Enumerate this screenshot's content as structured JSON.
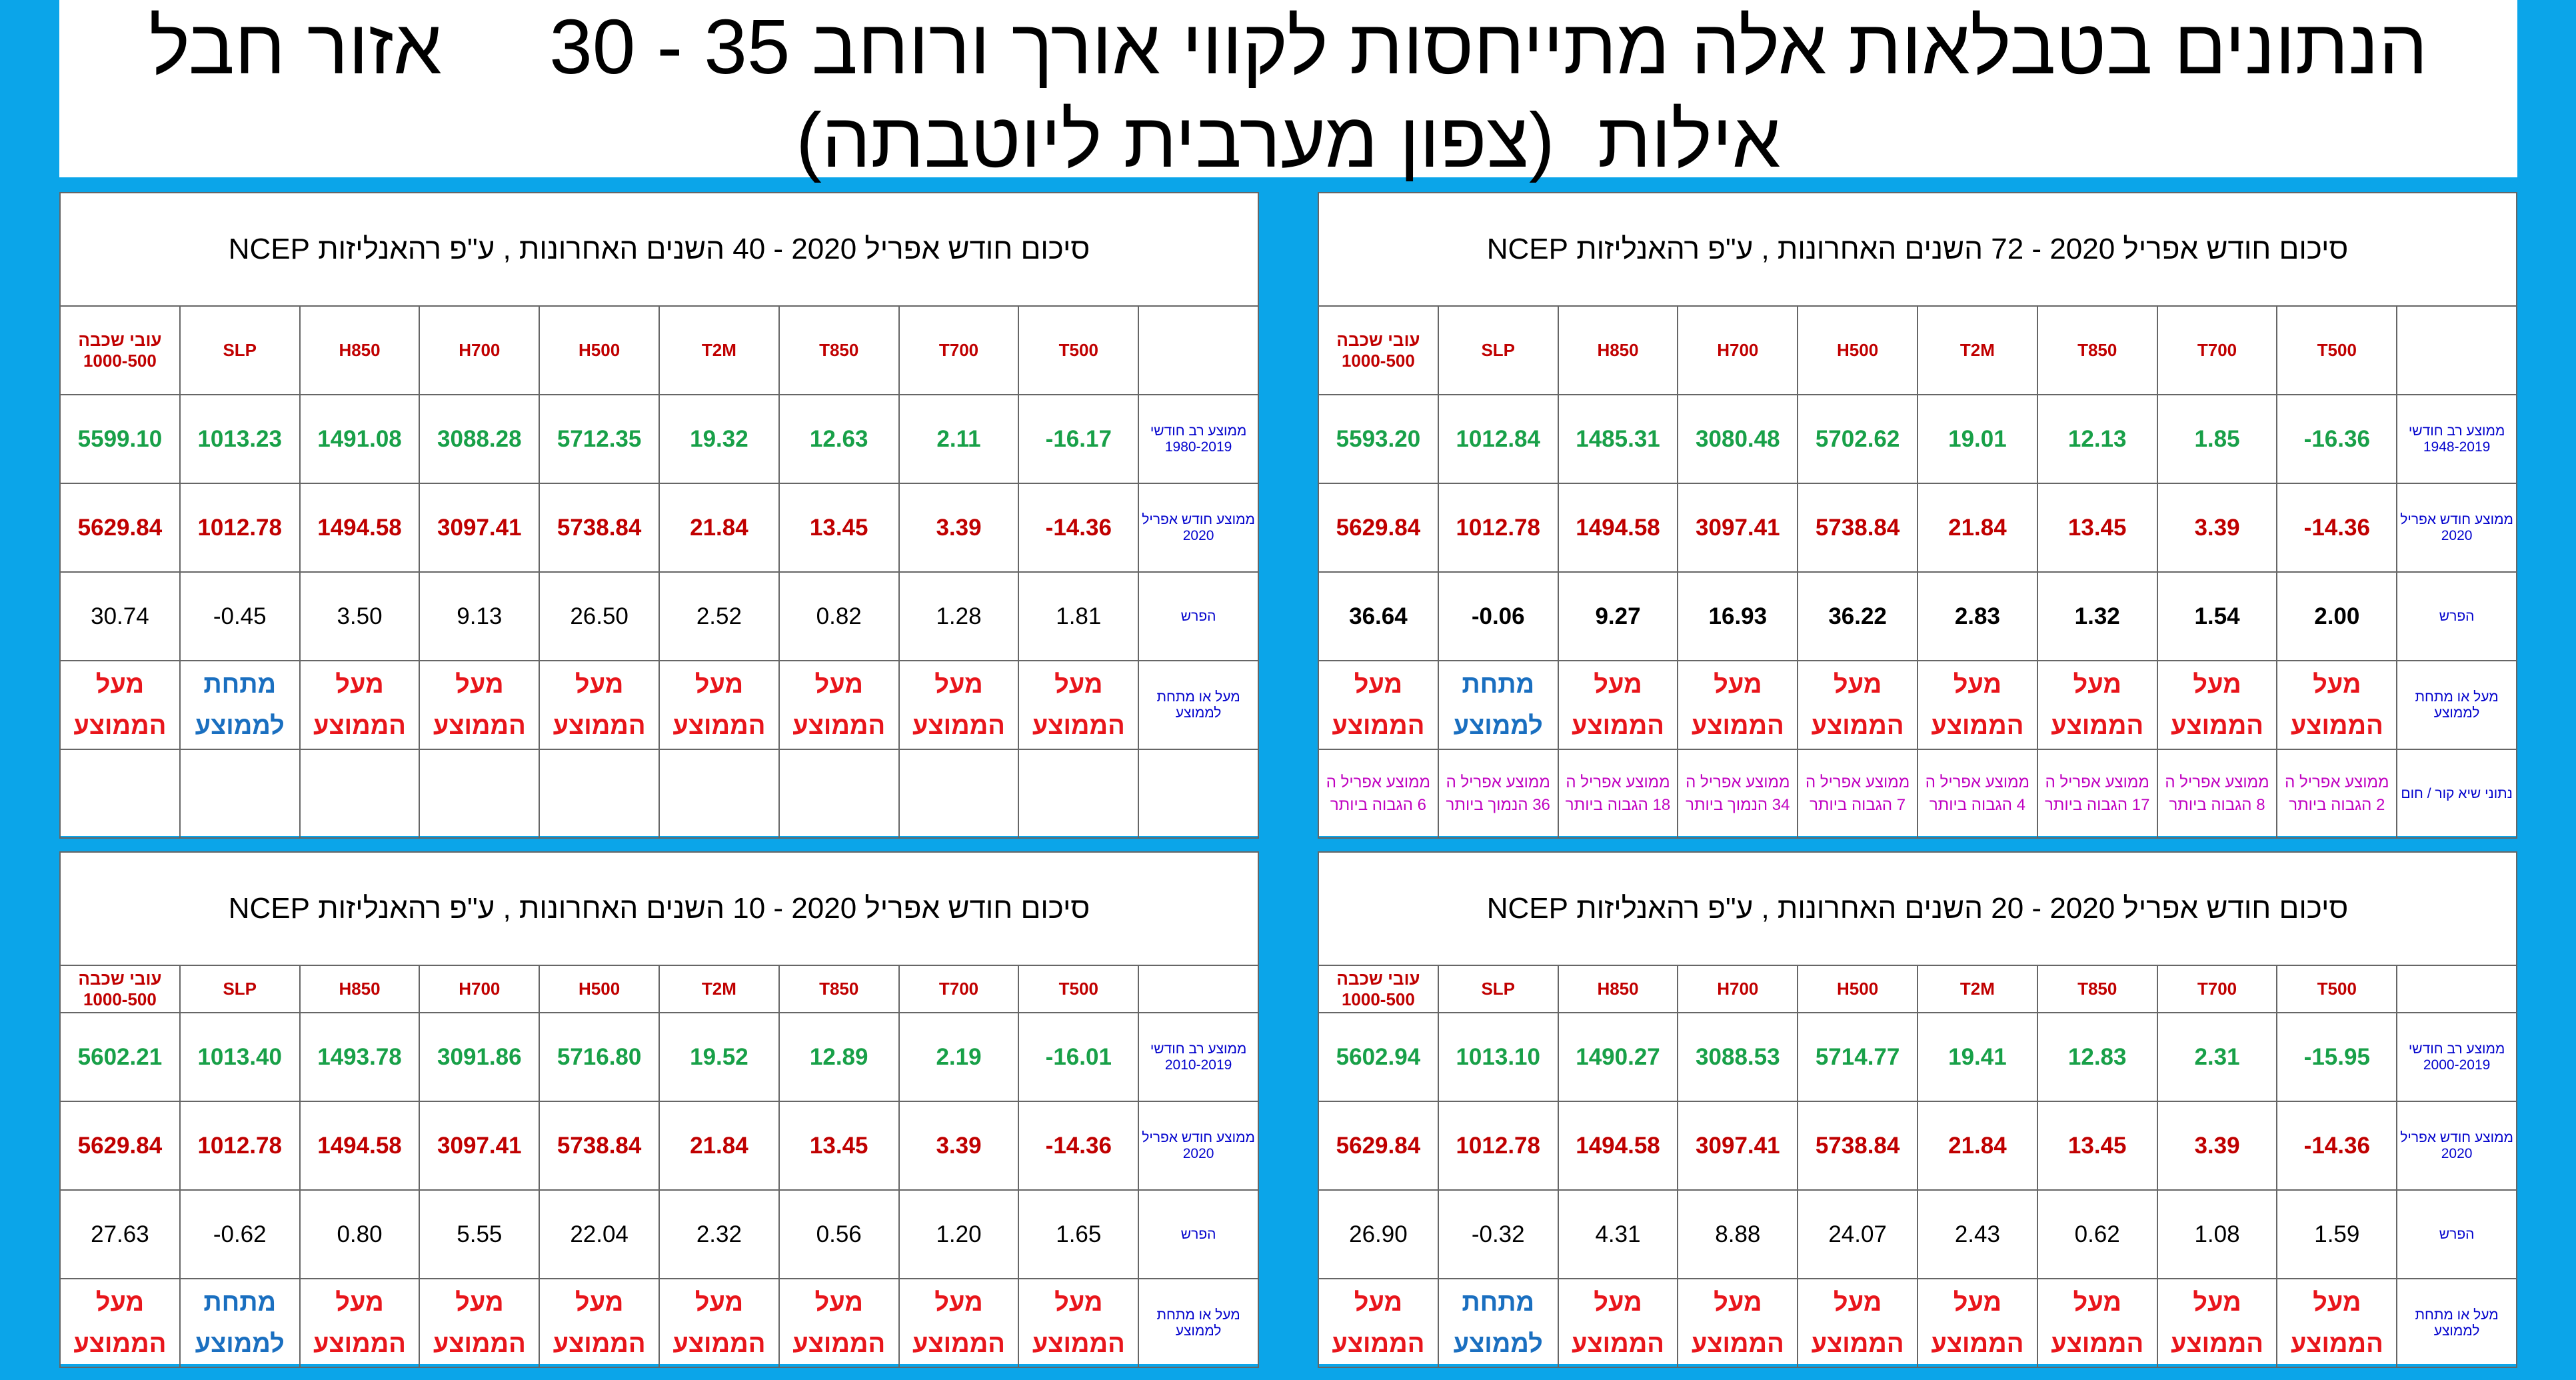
{
  "header": {
    "lines": [
      "הנתונים בטבלאות אלה מתייחסות לקווי אורך ורוחב 35 - 30     אזור חבל",
      "אילות  (צפון מערבית ליוטבתה)"
    ]
  },
  "tables": [
    {
      "title": "סיכום חודש אפריל 2020  -  72 השנים האחרונות  , ע\"פ רהאנליזות NCEP",
      "columns": [
        "T500",
        "T700",
        "T850",
        "T2M",
        "H500",
        "H700",
        "H850",
        "SLP",
        "עובי שכבה 1000-500"
      ],
      "rows": [
        {
          "label": "ממוצע רב חודשי 1948-2019",
          "cells": [
            "-16.36",
            "1.85",
            "12.13",
            "19.01",
            "5702.62",
            "3080.48",
            "1485.31",
            "1012.84",
            "5593.20"
          ]
        },
        {
          "label": "ממוצע חודש אפריל 2020",
          "cells": [
            "-14.36",
            "3.39",
            "13.45",
            "21.84",
            "5738.84",
            "3097.41",
            "1494.58",
            "1012.78",
            "5629.84"
          ]
        },
        {
          "label": "הפרש",
          "cells": [
            "2.00",
            "1.54",
            "1.32",
            "2.83",
            "36.22",
            "16.93",
            "9.27",
            "-0.06",
            "36.64"
          ]
        },
        {
          "label": "מעל או מתחת לממוצע",
          "cells": [
            "מעל הממוצע",
            "מעל הממוצע",
            "מעל הממוצע",
            "מעל הממוצע",
            "מעל הממוצע",
            "מעל הממוצע",
            "מעל הממוצע",
            "מתחת לממוצע",
            "מעל הממוצע"
          ]
        },
        {
          "label": "נתוני שיא  קור / חום",
          "cells": [
            "ממוצע אפריל ה 2 הגבוה ביותר",
            "ממוצע אפריל ה 8 הגבוה ביותר",
            "ממוצע אפריל ה 17 הגבוה ביותר",
            "ממוצע אפריל ה 4 הגבוה ביותר",
            "ממוצע אפריל ה 7 הגבוה ביותר",
            "ממוצע אפריל ה 34 הנמוך ביותר",
            "ממוצע אפריל ה 18 הגבוה ביותר",
            "ממוצע אפריל ה 36 הנמוך ביותר",
            "ממוצע אפריל ה 6 הגבוה ביותר"
          ]
        }
      ]
    },
    {
      "title": "סיכום חודש אפריל 2020  -  40 השנים האחרונות  , ע\"פ רהאנליזות NCEP",
      "columns": [
        "T500",
        "T700",
        "T850",
        "T2M",
        "H500",
        "H700",
        "H850",
        "SLP",
        "עובי שכבה 1000-500"
      ],
      "rows": [
        {
          "label": "ממוצע רב חודשי 1980-2019",
          "cells": [
            "-16.17",
            "2.11",
            "12.63",
            "19.32",
            "5712.35",
            "3088.28",
            "1491.08",
            "1013.23",
            "5599.10"
          ]
        },
        {
          "label": "ממוצע חודש אפריל 2020",
          "cells": [
            "-14.36",
            "3.39",
            "13.45",
            "21.84",
            "5738.84",
            "3097.41",
            "1494.58",
            "1012.78",
            "5629.84"
          ]
        },
        {
          "label": "הפרש",
          "cells": [
            "1.81",
            "1.28",
            "0.82",
            "2.52",
            "26.50",
            "9.13",
            "3.50",
            "-0.45",
            "30.74"
          ]
        },
        {
          "label": "מעל או מתחת לממוצע",
          "cells": [
            "מעל הממוצע",
            "מעל הממוצע",
            "מעל הממוצע",
            "מעל הממוצע",
            "מעל הממוצע",
            "מעל הממוצע",
            "מעל הממוצע",
            "מתחת לממוצע",
            "מעל הממוצע"
          ]
        }
      ]
    },
    {
      "title": "סיכום חודש אפריל 2020  -  20 השנים האחרונות  , ע\"פ רהאנליזות NCEP",
      "columns": [
        "T500",
        "T700",
        "T850",
        "T2M",
        "H500",
        "H700",
        "H850",
        "SLP",
        "עובי שכבה 1000-500"
      ],
      "rows": [
        {
          "label": "ממוצע רב חודשי 2000-2019",
          "cells": [
            "-15.95",
            "2.31",
            "12.83",
            "19.41",
            "5714.77",
            "3088.53",
            "1490.27",
            "1013.10",
            "5602.94"
          ]
        },
        {
          "label": "ממוצע חודש אפריל 2020",
          "cells": [
            "-14.36",
            "3.39",
            "13.45",
            "21.84",
            "5738.84",
            "3097.41",
            "1494.58",
            "1012.78",
            "5629.84"
          ]
        },
        {
          "label": "הפרש",
          "cells": [
            "1.59",
            "1.08",
            "0.62",
            "2.43",
            "24.07",
            "8.88",
            "4.31",
            "-0.32",
            "26.90"
          ]
        },
        {
          "label": "מעל או מתחת לממוצע",
          "cells": [
            "מעל הממוצע",
            "מעל הממוצע",
            "מעל הממוצע",
            "מעל הממוצע",
            "מעל הממוצע",
            "מעל הממוצע",
            "מעל הממוצע",
            "מתחת לממוצע",
            "מעל הממוצע"
          ]
        }
      ]
    },
    {
      "title": "סיכום חודש אפריל 2020  -  10 השנים האחרונות  , ע\"פ רהאנליזות NCEP",
      "columns": [
        "T500",
        "T700",
        "T850",
        "T2M",
        "H500",
        "H700",
        "H850",
        "SLP",
        "עובי שכבה 1000-500"
      ],
      "rows": [
        {
          "label": "ממוצע רב חודשי 2010-2019",
          "cells": [
            "-16.01",
            "2.19",
            "12.89",
            "19.52",
            "5716.80",
            "3091.86",
            "1493.78",
            "1013.40",
            "5602.21"
          ]
        },
        {
          "label": "ממוצע חודש אפריל 2020",
          "cells": [
            "-14.36",
            "3.39",
            "13.45",
            "21.84",
            "5738.84",
            "3097.41",
            "1494.58",
            "1012.78",
            "5629.84"
          ]
        },
        {
          "label": "הפרש",
          "cells": [
            "1.65",
            "1.20",
            "0.56",
            "2.32",
            "22.04",
            "5.55",
            "0.80",
            "-0.62",
            "27.63"
          ]
        },
        {
          "label": "מעל או מתחת לממוצע",
          "cells": [
            "מעל הממוצע",
            "מעל הממוצע",
            "מעל הממוצע",
            "מעל הממוצע",
            "מעל הממוצע",
            "מעל הממוצע",
            "מעל הממוצע",
            "מתחת לממוצע",
            "מעל הממוצע"
          ]
        }
      ]
    }
  ]
}
